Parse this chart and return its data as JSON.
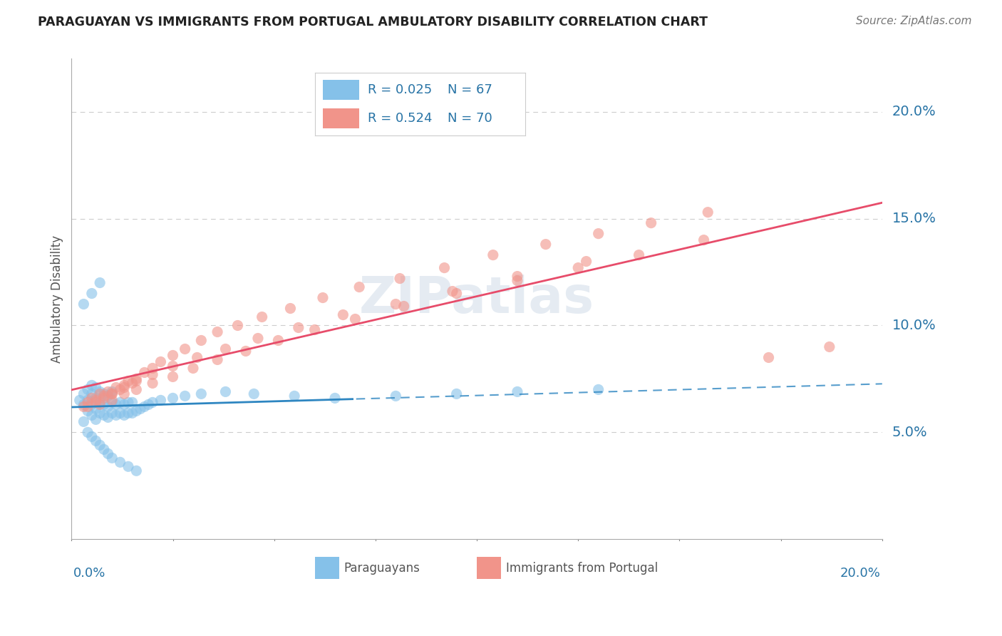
{
  "title": "PARAGUAYAN VS IMMIGRANTS FROM PORTUGAL AMBULATORY DISABILITY CORRELATION CHART",
  "source": "Source: ZipAtlas.com",
  "ylabel": "Ambulatory Disability",
  "label1": "Paraguayans",
  "label2": "Immigrants from Portugal",
  "xlim": [
    0.0,
    0.2
  ],
  "ylim": [
    0.0,
    0.225
  ],
  "yticks": [
    0.05,
    0.1,
    0.15,
    0.2
  ],
  "ytick_labels": [
    "5.0%",
    "10.0%",
    "15.0%",
    "20.0%"
  ],
  "xtick_left": "0.0%",
  "xtick_right": "20.0%",
  "legend_r1": "R = 0.025",
  "legend_n1": "N = 67",
  "legend_r2": "R = 0.524",
  "legend_n2": "N = 70",
  "color_blue": "#85c1e9",
  "color_pink": "#f1948a",
  "color_blue_edge": "#5dade2",
  "color_pink_edge": "#ec7063",
  "color_blue_line": "#2e86c1",
  "color_pink_line": "#e74c6a",
  "color_blue_text": "#2874a6",
  "color_grid": "#cccccc",
  "solid_cutoff": 0.07,
  "paraguayan_x": [
    0.002,
    0.003,
    0.003,
    0.004,
    0.004,
    0.004,
    0.005,
    0.005,
    0.005,
    0.005,
    0.006,
    0.006,
    0.006,
    0.006,
    0.007,
    0.007,
    0.007,
    0.008,
    0.008,
    0.008,
    0.009,
    0.009,
    0.009,
    0.01,
    0.01,
    0.01,
    0.011,
    0.011,
    0.012,
    0.012,
    0.013,
    0.013,
    0.014,
    0.014,
    0.015,
    0.015,
    0.016,
    0.017,
    0.018,
    0.019,
    0.02,
    0.022,
    0.025,
    0.028,
    0.032,
    0.038,
    0.045,
    0.055,
    0.065,
    0.08,
    0.095,
    0.11,
    0.13,
    0.003,
    0.004,
    0.005,
    0.006,
    0.007,
    0.008,
    0.009,
    0.01,
    0.012,
    0.014,
    0.016,
    0.003,
    0.005,
    0.007
  ],
  "paraguayan_y": [
    0.065,
    0.063,
    0.068,
    0.06,
    0.065,
    0.07,
    0.058,
    0.063,
    0.068,
    0.072,
    0.056,
    0.061,
    0.066,
    0.071,
    0.059,
    0.064,
    0.069,
    0.058,
    0.063,
    0.068,
    0.057,
    0.062,
    0.067,
    0.059,
    0.064,
    0.069,
    0.058,
    0.063,
    0.059,
    0.064,
    0.058,
    0.063,
    0.059,
    0.064,
    0.059,
    0.064,
    0.06,
    0.061,
    0.062,
    0.063,
    0.064,
    0.065,
    0.066,
    0.067,
    0.068,
    0.069,
    0.068,
    0.067,
    0.066,
    0.067,
    0.068,
    0.069,
    0.07,
    0.055,
    0.05,
    0.048,
    0.046,
    0.044,
    0.042,
    0.04,
    0.038,
    0.036,
    0.034,
    0.032,
    0.11,
    0.115,
    0.12
  ],
  "portugal_x": [
    0.003,
    0.004,
    0.005,
    0.006,
    0.007,
    0.008,
    0.009,
    0.01,
    0.011,
    0.012,
    0.013,
    0.014,
    0.015,
    0.016,
    0.018,
    0.02,
    0.022,
    0.025,
    0.028,
    0.032,
    0.036,
    0.041,
    0.047,
    0.054,
    0.062,
    0.071,
    0.081,
    0.092,
    0.104,
    0.117,
    0.13,
    0.143,
    0.157,
    0.172,
    0.187,
    0.007,
    0.01,
    0.013,
    0.016,
    0.02,
    0.025,
    0.03,
    0.036,
    0.043,
    0.051,
    0.06,
    0.07,
    0.082,
    0.095,
    0.11,
    0.125,
    0.14,
    0.156,
    0.004,
    0.006,
    0.008,
    0.01,
    0.013,
    0.016,
    0.02,
    0.025,
    0.031,
    0.038,
    0.046,
    0.056,
    0.067,
    0.08,
    0.094,
    0.11,
    0.127
  ],
  "portugal_y": [
    0.062,
    0.064,
    0.066,
    0.065,
    0.068,
    0.067,
    0.069,
    0.068,
    0.071,
    0.07,
    0.072,
    0.074,
    0.073,
    0.075,
    0.078,
    0.08,
    0.083,
    0.086,
    0.089,
    0.093,
    0.097,
    0.1,
    0.104,
    0.108,
    0.113,
    0.118,
    0.122,
    0.127,
    0.133,
    0.138,
    0.143,
    0.148,
    0.153,
    0.085,
    0.09,
    0.063,
    0.065,
    0.068,
    0.07,
    0.073,
    0.076,
    0.08,
    0.084,
    0.088,
    0.093,
    0.098,
    0.103,
    0.109,
    0.115,
    0.121,
    0.127,
    0.133,
    0.14,
    0.062,
    0.064,
    0.066,
    0.068,
    0.071,
    0.074,
    0.077,
    0.081,
    0.085,
    0.089,
    0.094,
    0.099,
    0.105,
    0.11,
    0.116,
    0.123,
    0.13
  ]
}
